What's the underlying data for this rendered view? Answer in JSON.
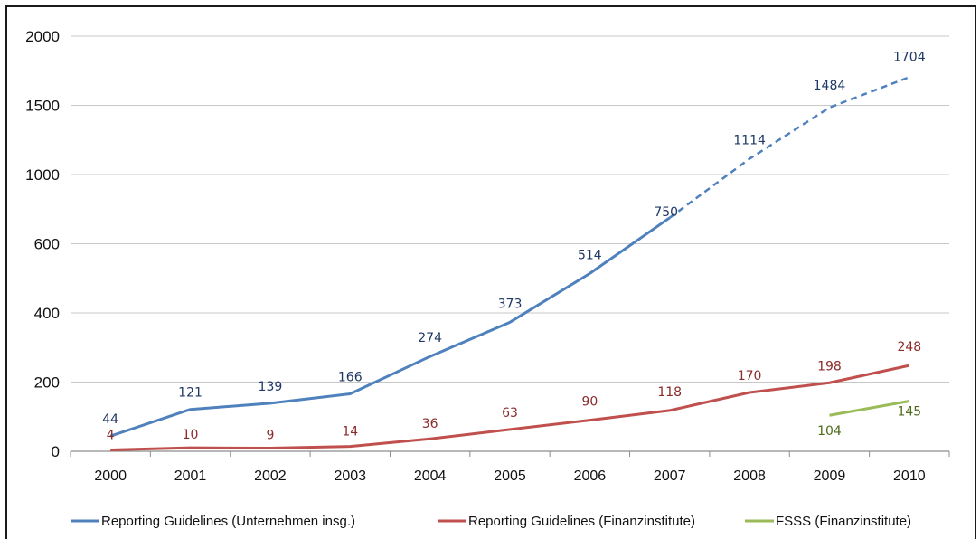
{
  "chart_data": {
    "type": "line",
    "title": "",
    "xlabel": "",
    "ylabel": "",
    "categories": [
      "2000",
      "2001",
      "2002",
      "2003",
      "2004",
      "2005",
      "2006",
      "2007",
      "2008",
      "2009",
      "2010"
    ],
    "y_tick_labels": [
      "0",
      "200",
      "400",
      "600",
      "1000",
      "1500",
      "2000"
    ],
    "y_tick_values": [
      0,
      200,
      400,
      600,
      1000,
      1500,
      2000
    ],
    "grid": true,
    "legend_position": "bottom",
    "series": [
      {
        "name": "Reporting Guidelines (Unternehmen insg.)",
        "color": "#4f81bd",
        "x": [
          "2000",
          "2001",
          "2002",
          "2003",
          "2004",
          "2005",
          "2006",
          "2007",
          "2008",
          "2009",
          "2010"
        ],
        "values": [
          44,
          121,
          139,
          166,
          274,
          373,
          514,
          750,
          1114,
          1484,
          1704
        ],
        "dashed_from": "2007"
      },
      {
        "name": "Reporting Guidelines (Finanzinstitute)",
        "color": "#c0504d",
        "x": [
          "2000",
          "2001",
          "2002",
          "2003",
          "2004",
          "2005",
          "2006",
          "2007",
          "2008",
          "2009",
          "2010"
        ],
        "values": [
          4,
          10,
          9,
          14,
          36,
          63,
          90,
          118,
          170,
          198,
          248
        ]
      },
      {
        "name": "FSSS (Finanzinstitute)",
        "color": "#9bbb59",
        "x": [
          "2009",
          "2010"
        ],
        "values": [
          104,
          145
        ]
      }
    ]
  }
}
